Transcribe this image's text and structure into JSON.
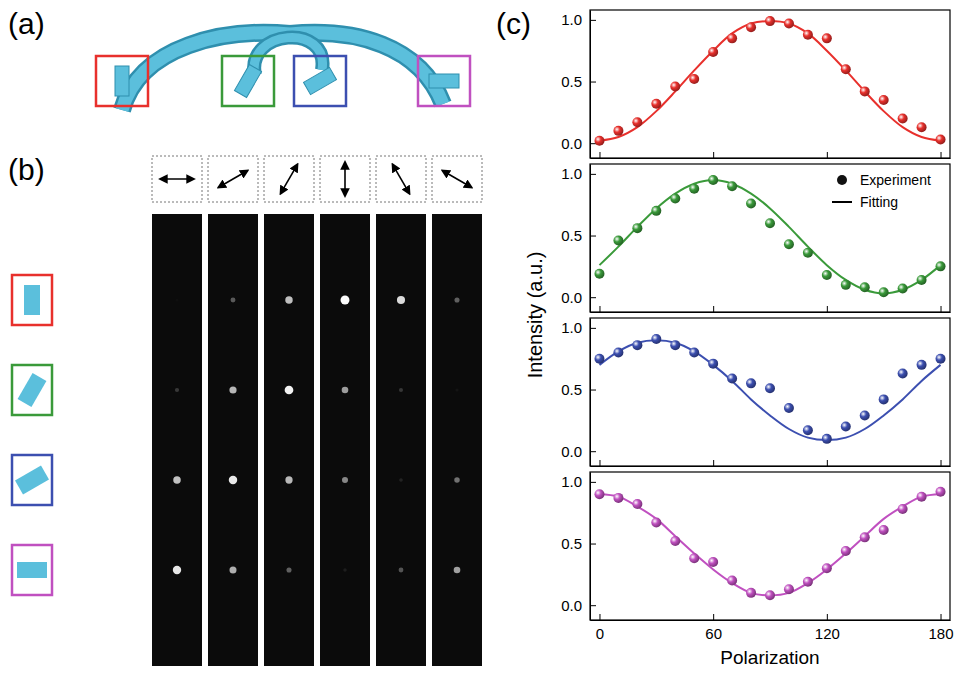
{
  "figure": {
    "panel_labels": [
      "(a)",
      "(b)",
      "(c)"
    ],
    "y_label": "Intensity (a.u.)"
  },
  "chart_data": [
    {
      "type": "scatter",
      "color": "#e8302c",
      "x": [
        0,
        10,
        20,
        30,
        40,
        50,
        60,
        70,
        80,
        90,
        100,
        110,
        120,
        130,
        140,
        150,
        160,
        170,
        180
      ],
      "xlim": [
        -5,
        185
      ],
      "ylim": [
        -0.12,
        1.08
      ],
      "xticks": [
        0,
        60,
        120,
        180
      ],
      "yticks": [
        {
          "value": 0,
          "label": "0.0"
        },
        {
          "value": 0.5,
          "label": "0.5"
        },
        {
          "value": 1,
          "label": "1.0"
        }
      ],
      "tick_labels": "y",
      "series": [
        {
          "type": "scatter",
          "marker": "circle",
          "values": [
            0.02,
            0.1,
            0.17,
            0.32,
            0.46,
            0.52,
            0.74,
            0.85,
            0.94,
            0.99,
            0.97,
            0.88,
            0.85,
            0.6,
            0.42,
            0.35,
            0.2,
            0.13,
            0.03
          ]
        },
        {
          "type": "line",
          "line_style": "solid",
          "values": [
            0.02,
            0.05,
            0.13,
            0.26,
            0.42,
            0.59,
            0.75,
            0.89,
            0.97,
            0.99,
            0.97,
            0.89,
            0.75,
            0.59,
            0.42,
            0.26,
            0.13,
            0.05,
            0.02
          ]
        }
      ]
    },
    {
      "type": "scatter",
      "color": "#3a9a3a",
      "x": [
        0,
        10,
        20,
        30,
        40,
        50,
        60,
        70,
        80,
        90,
        100,
        110,
        120,
        130,
        140,
        150,
        160,
        170,
        180
      ],
      "xlim": [
        -5,
        185
      ],
      "ylim": [
        -0.12,
        1.08
      ],
      "xticks": [
        0,
        60,
        120,
        180
      ],
      "yticks": [
        {
          "value": 0,
          "label": "0.0"
        },
        {
          "value": 0.5,
          "label": "0.5"
        },
        {
          "value": 1,
          "label": "1.0"
        }
      ],
      "tick_labels": "y",
      "legend": "upper right",
      "series": [
        {
          "name": "Experiment",
          "type": "scatter",
          "marker": "circle",
          "values": [
            0.19,
            0.46,
            0.56,
            0.7,
            0.8,
            0.88,
            0.95,
            0.9,
            0.76,
            0.6,
            0.43,
            0.36,
            0.18,
            0.1,
            0.08,
            0.04,
            0.07,
            0.14,
            0.25
          ]
        },
        {
          "name": "Fitting",
          "type": "line",
          "line_style": "solid",
          "values": [
            0.26,
            0.41,
            0.57,
            0.72,
            0.84,
            0.92,
            0.95,
            0.92,
            0.84,
            0.72,
            0.57,
            0.41,
            0.26,
            0.14,
            0.06,
            0.03,
            0.06,
            0.14,
            0.26
          ]
        }
      ]
    },
    {
      "type": "scatter",
      "color": "#3c4fb0",
      "x": [
        0,
        10,
        20,
        30,
        40,
        50,
        60,
        70,
        80,
        90,
        100,
        110,
        120,
        130,
        140,
        150,
        160,
        170,
        180
      ],
      "xlim": [
        -5,
        185
      ],
      "ylim": [
        -0.12,
        1.08
      ],
      "xticks": [
        0,
        60,
        120,
        180
      ],
      "yticks": [
        {
          "value": 0,
          "label": "0.0"
        },
        {
          "value": 0.5,
          "label": "0.5"
        },
        {
          "value": 1,
          "label": "1.0"
        }
      ],
      "tick_labels": "y",
      "series": [
        {
          "type": "scatter",
          "marker": "circle",
          "values": [
            0.75,
            0.8,
            0.86,
            0.91,
            0.86,
            0.8,
            0.71,
            0.59,
            0.55,
            0.51,
            0.35,
            0.17,
            0.1,
            0.2,
            0.29,
            0.42,
            0.63,
            0.7,
            0.75
          ]
        },
        {
          "type": "line",
          "line_style": "solid",
          "values": [
            0.7,
            0.81,
            0.88,
            0.9,
            0.88,
            0.81,
            0.7,
            0.57,
            0.42,
            0.29,
            0.18,
            0.11,
            0.09,
            0.11,
            0.18,
            0.29,
            0.42,
            0.57,
            0.7
          ]
        }
      ]
    },
    {
      "type": "scatter",
      "color": "#c050c0",
      "x": [
        0,
        10,
        20,
        30,
        40,
        50,
        60,
        70,
        80,
        90,
        100,
        110,
        120,
        130,
        140,
        150,
        160,
        170,
        180
      ],
      "xlim": [
        -5,
        185
      ],
      "ylim": [
        -0.12,
        1.08
      ],
      "xticks": [
        0,
        60,
        120,
        180
      ],
      "yticks": [
        {
          "value": 0,
          "label": "0.0"
        },
        {
          "value": 0.5,
          "label": "0.5"
        },
        {
          "value": 1,
          "label": "1.0"
        }
      ],
      "x_label": "Polarization",
      "series": [
        {
          "type": "scatter",
          "marker": "circle",
          "values": [
            0.9,
            0.87,
            0.82,
            0.67,
            0.52,
            0.38,
            0.35,
            0.2,
            0.1,
            0.08,
            0.13,
            0.19,
            0.3,
            0.44,
            0.55,
            0.61,
            0.78,
            0.88,
            0.92
          ]
        },
        {
          "type": "line",
          "line_style": "solid",
          "values": [
            0.9,
            0.88,
            0.8,
            0.7,
            0.56,
            0.42,
            0.29,
            0.18,
            0.1,
            0.08,
            0.1,
            0.18,
            0.29,
            0.42,
            0.56,
            0.7,
            0.8,
            0.88,
            0.9
          ]
        }
      ]
    }
  ]
}
